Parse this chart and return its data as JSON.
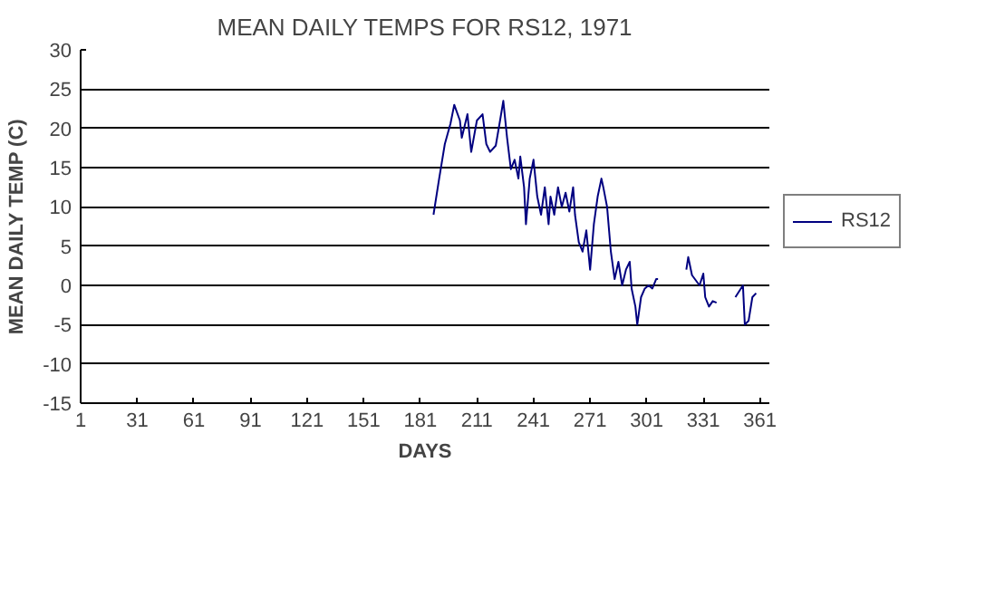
{
  "chart_data": {
    "type": "line",
    "title": "MEAN DAILY TEMPS FOR RS12, 1971",
    "xlabel": "DAYS",
    "ylabel": "MEAN DAILY TEMP (C)",
    "x": [
      188,
      191,
      194,
      197,
      199,
      202,
      203,
      206,
      208,
      211,
      214,
      216,
      218,
      221,
      223,
      225,
      227,
      229,
      231,
      233,
      234,
      236,
      237,
      239,
      241,
      243,
      245,
      247,
      249,
      250,
      252,
      254,
      256,
      258,
      260,
      262,
      263,
      265,
      267,
      269,
      271,
      273,
      275,
      277,
      278,
      280,
      282,
      284,
      286,
      288,
      290,
      292,
      293,
      295,
      296,
      298,
      300,
      302,
      304,
      306,
      307,
      314,
      322,
      323,
      325,
      329,
      331,
      332,
      334,
      336,
      338,
      343,
      348,
      352,
      353,
      355,
      357,
      359
    ],
    "series": [
      {
        "name": "RS12",
        "color": "#000080",
        "values": [
          9,
          13.6,
          18,
          20.6,
          23,
          21,
          18.8,
          21.8,
          17,
          21,
          21.8,
          18,
          17,
          17.8,
          20.6,
          23.5,
          18.8,
          14.8,
          16,
          13.6,
          16.4,
          12.5,
          7.8,
          13.6,
          16,
          11.3,
          9,
          12.5,
          7.8,
          11.3,
          9,
          12.5,
          10,
          11.8,
          9.4,
          12.5,
          9,
          5.5,
          4.3,
          7,
          2,
          7.8,
          11.3,
          13.6,
          12.5,
          10,
          4.3,
          0.8,
          3,
          0,
          2,
          3,
          -0.4,
          -2.7,
          -5,
          -1.5,
          -0.4,
          0,
          -0.4,
          0.8,
          0.8,
          null,
          2,
          3.6,
          1.3,
          0,
          1.5,
          -1.5,
          -2.7,
          -2,
          -2.2,
          null,
          -1.5,
          0,
          -5,
          -4.5,
          -1.5,
          -1
        ]
      }
    ],
    "xlim": [
      1,
      366
    ],
    "xticks": [
      1,
      31,
      61,
      91,
      121,
      151,
      181,
      211,
      241,
      271,
      301,
      331,
      361
    ],
    "ylim": [
      -15,
      30
    ],
    "yticks": [
      -15,
      -10,
      -5,
      0,
      5,
      10,
      15,
      20,
      25,
      30
    ],
    "grid": "y",
    "legend": "right",
    "marker": "none",
    "line_style": "solid"
  }
}
